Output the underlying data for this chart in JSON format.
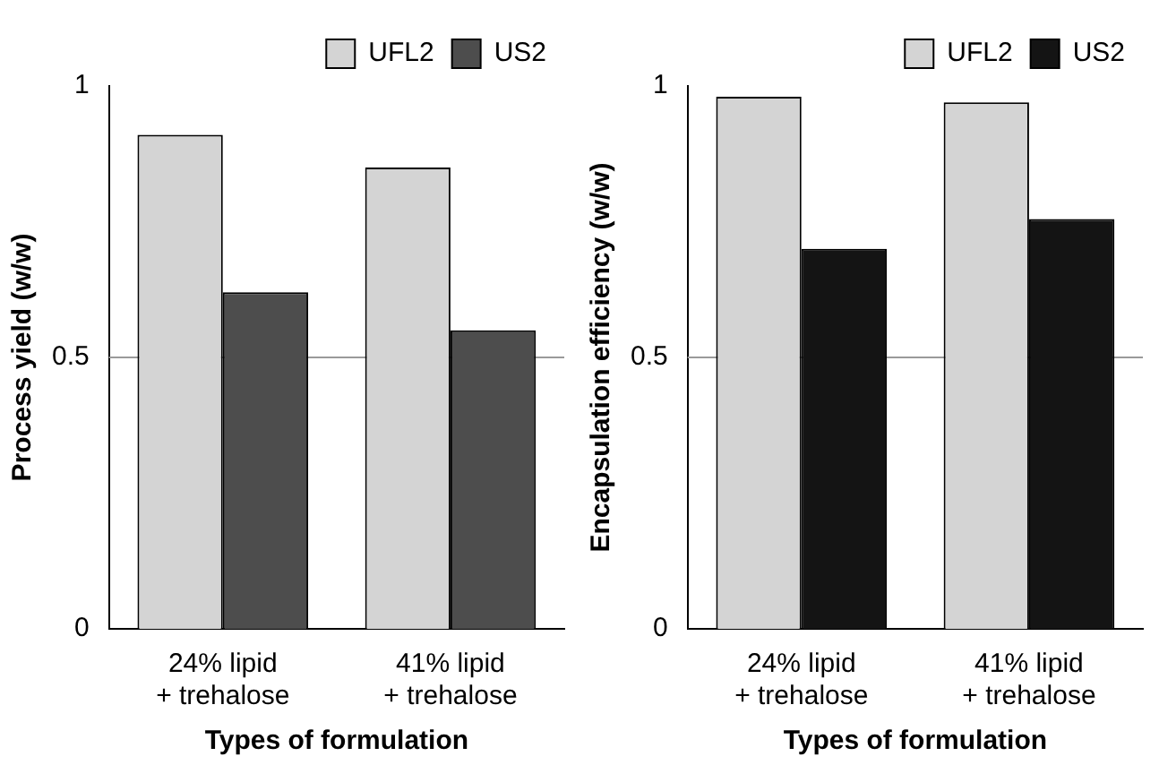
{
  "chart_data": [
    {
      "type": "bar",
      "xlabel": "Types of formulation",
      "ylabel": "Process yield (w/w)",
      "categories": [
        "24% lipid + trehalose",
        "41% lipid + trehalose"
      ],
      "series": [
        {
          "name": "UFL2",
          "color": "#d4d4d4",
          "values": [
            0.91,
            0.85
          ]
        },
        {
          "name": "US2",
          "color": "#4d4d4d",
          "values": [
            0.62,
            0.55
          ]
        }
      ],
      "ylim": [
        0,
        1
      ],
      "yticks": [
        0,
        0.5,
        1
      ],
      "legend": "top right",
      "ref_lines": [
        {
          "axis": "y",
          "value": 0.5,
          "color": "#9a9a9a"
        }
      ]
    },
    {
      "type": "bar",
      "xlabel": "Types of formulation",
      "ylabel": "Encapsulation efficiency (w/w)",
      "categories": [
        "24% lipid + trehalose",
        "41% lipid + trehalose"
      ],
      "series": [
        {
          "name": "UFL2",
          "color": "#d4d4d4",
          "values": [
            0.98,
            0.97
          ]
        },
        {
          "name": "US2",
          "color": "#141414",
          "values": [
            0.7,
            0.755
          ]
        }
      ],
      "ylim": [
        0,
        1
      ],
      "yticks": [
        0,
        0.5,
        1
      ],
      "legend": "top right",
      "ref_lines": [
        {
          "axis": "y",
          "value": 0.5,
          "color": "#9a9a9a"
        }
      ]
    }
  ]
}
